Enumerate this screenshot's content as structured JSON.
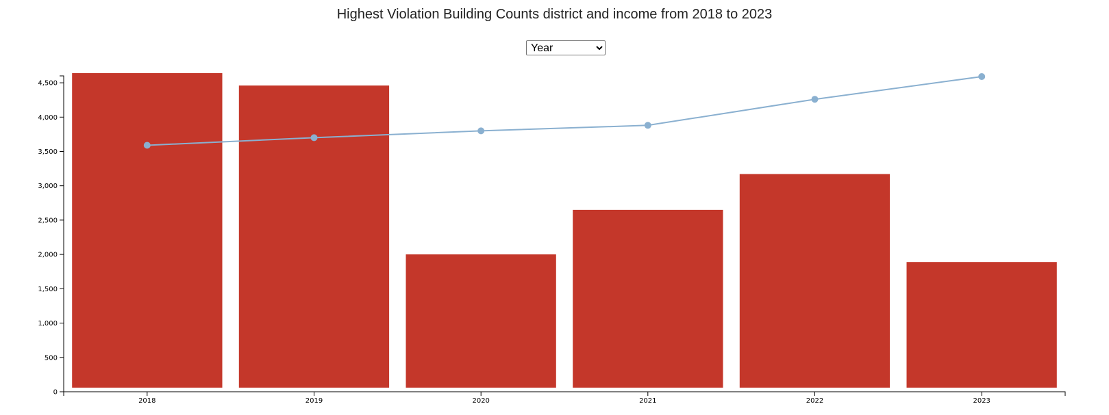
{
  "chart_data": {
    "type": "bar",
    "title": "Highest Violation Building Counts district and income from 2018 to 2023",
    "categories": [
      "2018",
      "2019",
      "2020",
      "2021",
      "2022",
      "2023"
    ],
    "series": [
      {
        "type": "bar",
        "values": [
          4640,
          4460,
          2000,
          2650,
          3170,
          1890
        ],
        "color": "#c4372a"
      },
      {
        "type": "line",
        "values": [
          3590,
          3700,
          3800,
          3880,
          4260,
          4590
        ],
        "color": "#8ab0d0"
      }
    ],
    "ylim": [
      0,
      4650
    ],
    "yticks": [
      0,
      500,
      1000,
      1500,
      2000,
      2500,
      3000,
      3500,
      4000,
      4500
    ],
    "ytick_labels": [
      "0",
      "500",
      "1,000",
      "1,500",
      "2,000",
      "2,500",
      "3,000",
      "3,500",
      "4,000",
      "4,500"
    ],
    "grid": false,
    "legend": "none"
  },
  "controls": {
    "dropdown": {
      "selected": "Year",
      "options": [
        "Year"
      ]
    }
  }
}
